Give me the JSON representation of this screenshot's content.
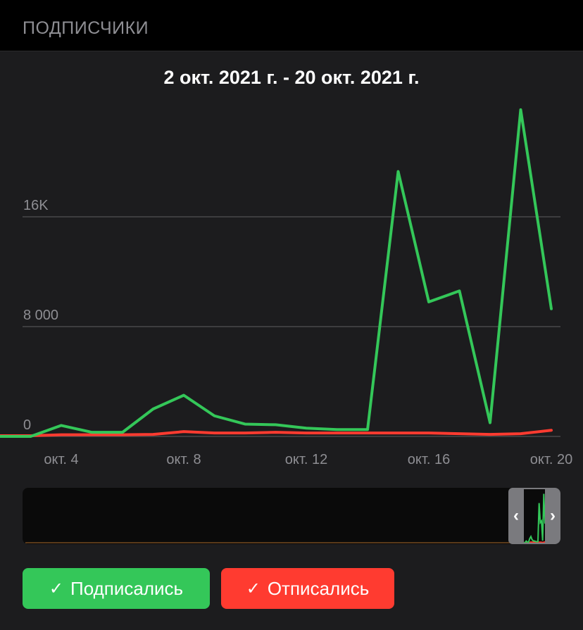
{
  "header": {
    "title": "ПОДПИСЧИКИ"
  },
  "chart": {
    "range_title": "2 окт. 2021 г. - 20 окт. 2021 г."
  },
  "legend": {
    "subscribed": {
      "label": "Подписались",
      "check": "✓",
      "color": "#34c759"
    },
    "unsubscribed": {
      "label": "Отписались",
      "check": "✓",
      "color": "#ff3b30"
    }
  },
  "navigator": {
    "left_icon": "‹",
    "right_icon": "›"
  },
  "chart_data": {
    "type": "line",
    "x": [
      "окт. 2",
      "окт. 3",
      "окт. 4",
      "окт. 5",
      "окт. 6",
      "окт. 7",
      "окт. 8",
      "окт. 9",
      "окт. 10",
      "окт. 11",
      "окт. 12",
      "окт. 13",
      "окт. 14",
      "окт. 15",
      "окт. 16",
      "окт. 17",
      "окт. 18",
      "окт. 19",
      "окт. 20"
    ],
    "x_ticks": [
      "окт. 4",
      "окт. 8",
      "окт. 12",
      "окт. 16",
      "окт. 20"
    ],
    "y_ticks": [
      "0",
      "8 000",
      "16K"
    ],
    "ylim": [
      0,
      24000
    ],
    "grid": true,
    "series": [
      {
        "name": "Подписались",
        "color": "#34c759",
        "values": [
          0,
          0,
          800,
          300,
          300,
          2000,
          3000,
          1500,
          900,
          850,
          600,
          500,
          500,
          19300,
          9800,
          10600,
          1000,
          23800,
          9300
        ]
      },
      {
        "name": "Отписались",
        "color": "#ff3b30",
        "values": [
          50,
          50,
          120,
          120,
          120,
          150,
          350,
          250,
          250,
          300,
          250,
          250,
          250,
          250,
          250,
          200,
          150,
          200,
          450
        ]
      }
    ]
  }
}
